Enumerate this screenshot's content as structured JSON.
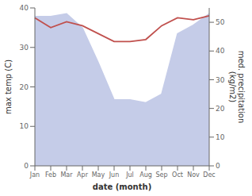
{
  "chart_data": {
    "type": "line",
    "categories": [
      "Jan",
      "Feb",
      "Mar",
      "Apr",
      "May",
      "Jun",
      "Jul",
      "Aug",
      "Sep",
      "Oct",
      "Nov",
      "Dec"
    ],
    "series": [
      {
        "name": "med. precipitation",
        "type": "area",
        "axis": "y2",
        "color": "#c5cce8",
        "values": [
          52,
          52,
          53,
          48,
          36,
          23,
          23,
          22,
          25,
          46,
          49,
          53
        ]
      },
      {
        "name": "max temp",
        "type": "line",
        "color": "#c0504d",
        "values": [
          37.5,
          35.0,
          36.5,
          35.5,
          33.5,
          31.5,
          31.5,
          32.0,
          35.5,
          37.5,
          37.0,
          38.0
        ]
      }
    ],
    "x_label": "date (month)",
    "y_label": "max temp (C)",
    "y2_label": "med. precipitation\n(kg/m2)",
    "ylim": [
      0,
      40
    ],
    "yticks": [
      0,
      10,
      20,
      30,
      40
    ],
    "y2lim": [
      0,
      55
    ],
    "y2ticks": [
      0,
      10,
      20,
      30,
      40,
      50
    ],
    "grid": false,
    "legend": false
  }
}
